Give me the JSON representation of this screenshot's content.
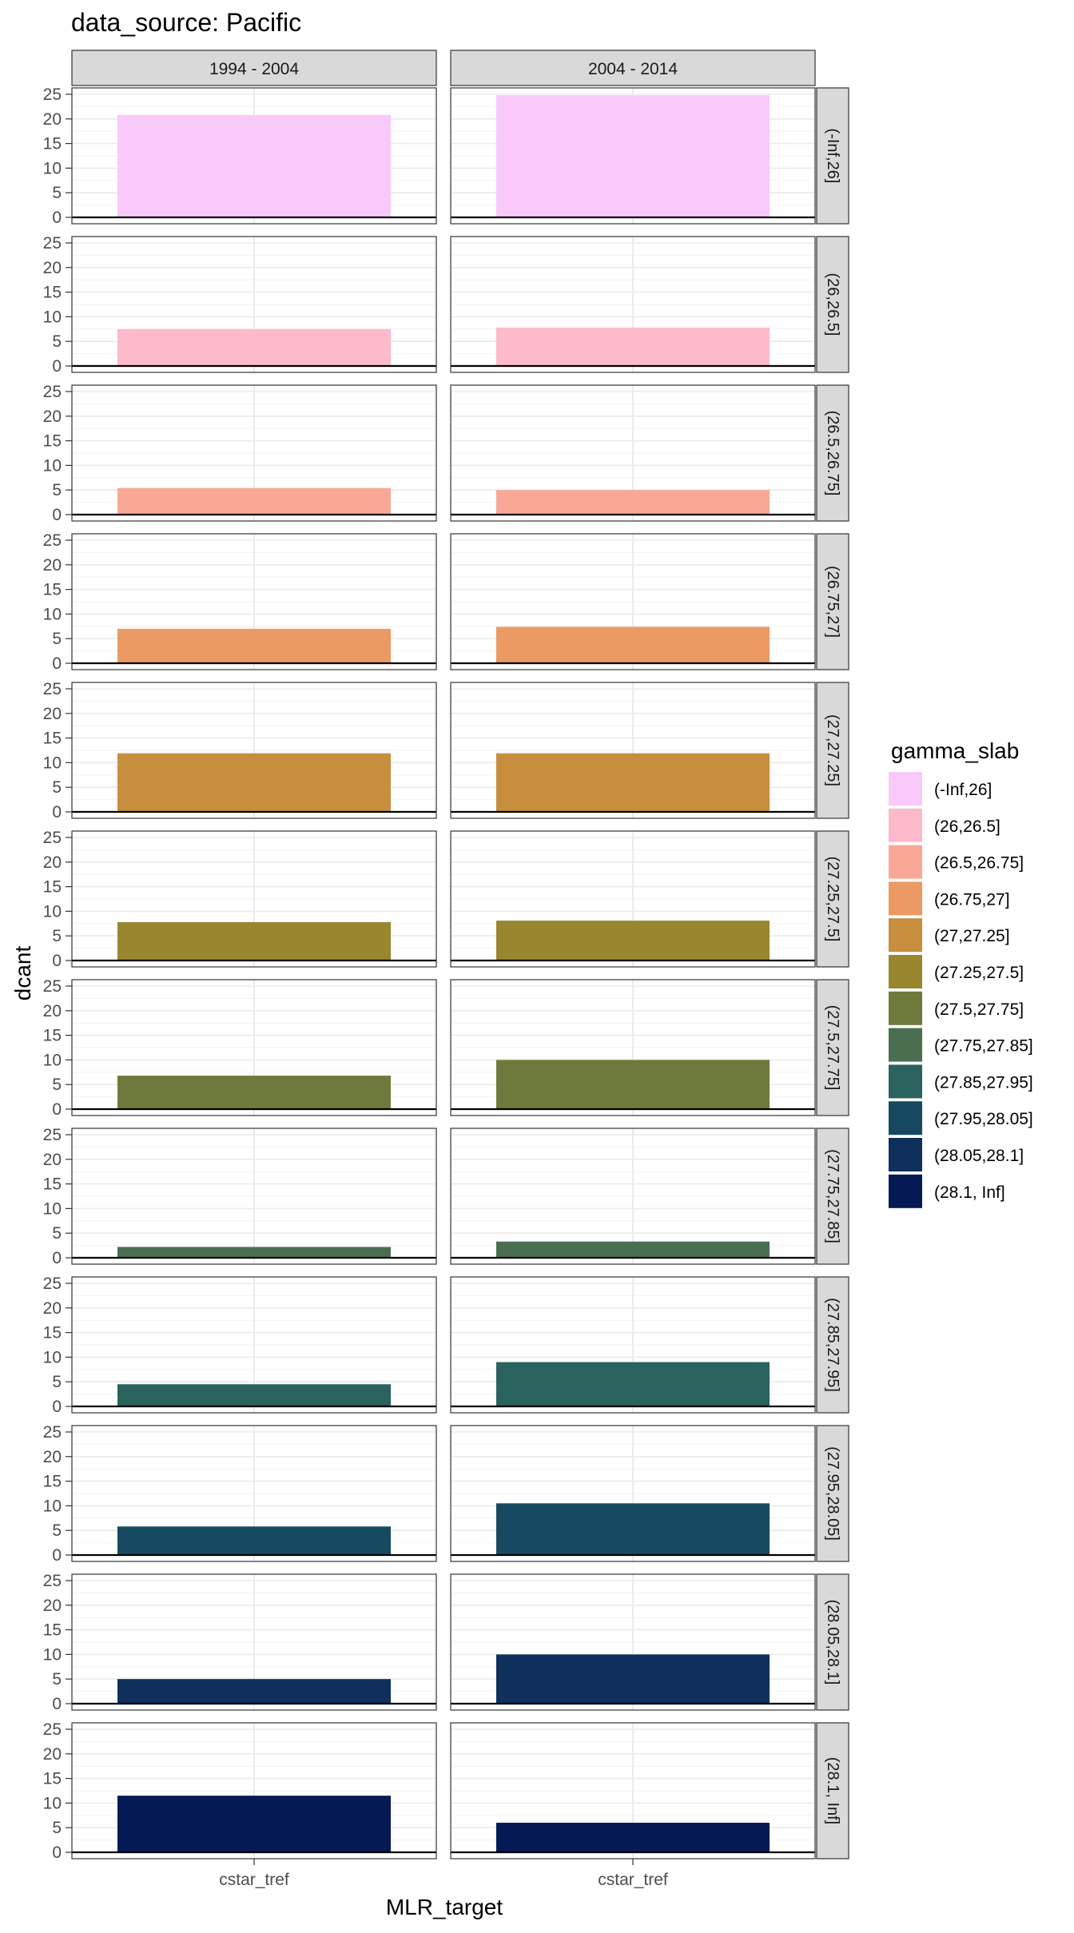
{
  "chart_data": {
    "type": "bar",
    "title": "data_source: Pacific",
    "xlabel": "MLR_target",
    "ylabel": "dcant",
    "categories": [
      "cstar_tref"
    ],
    "ylim": [
      0,
      25
    ],
    "yticks": [
      0,
      5,
      10,
      15,
      20,
      25
    ],
    "grid": true,
    "legend_position": "right",
    "legend_title": "gamma_slab",
    "column_facets": [
      "1994 - 2004",
      "2004 - 2014"
    ],
    "row_facets": [
      {
        "label": "(-Inf,26]",
        "color": "#F9CAF9",
        "values": [
          20.8,
          24.8
        ]
      },
      {
        "label": "(26,26.5]",
        "color": "#FCBACA",
        "values": [
          7.5,
          7.8
        ]
      },
      {
        "label": "(26.5,26.75]",
        "color": "#F9A897",
        "values": [
          5.4,
          5.0
        ]
      },
      {
        "label": "(26.75,27]",
        "color": "#EB9A64",
        "values": [
          7.0,
          7.4
        ]
      },
      {
        "label": "(27,27.25]",
        "color": "#C78E3D",
        "values": [
          11.9,
          11.9
        ]
      },
      {
        "label": "(27.25,27.5]",
        "color": "#98872F",
        "values": [
          7.8,
          8.1
        ]
      },
      {
        "label": "(27.5,27.75]",
        "color": "#6E7A3B",
        "values": [
          6.8,
          10.0
        ]
      },
      {
        "label": "(27.75,27.85]",
        "color": "#4B6E51",
        "values": [
          2.2,
          3.3
        ]
      },
      {
        "label": "(27.85,27.95]",
        "color": "#2A625E",
        "values": [
          4.5,
          9.0
        ]
      },
      {
        "label": "(27.95,28.05]",
        "color": "#174A60",
        "values": [
          5.8,
          10.5
        ]
      },
      {
        "label": "(28.05,28.1]",
        "color": "#0F305B",
        "values": [
          5.0,
          10.0
        ]
      },
      {
        "label": "(28.1, Inf]",
        "color": "#051A55",
        "values": [
          11.5,
          6.0
        ]
      }
    ]
  }
}
